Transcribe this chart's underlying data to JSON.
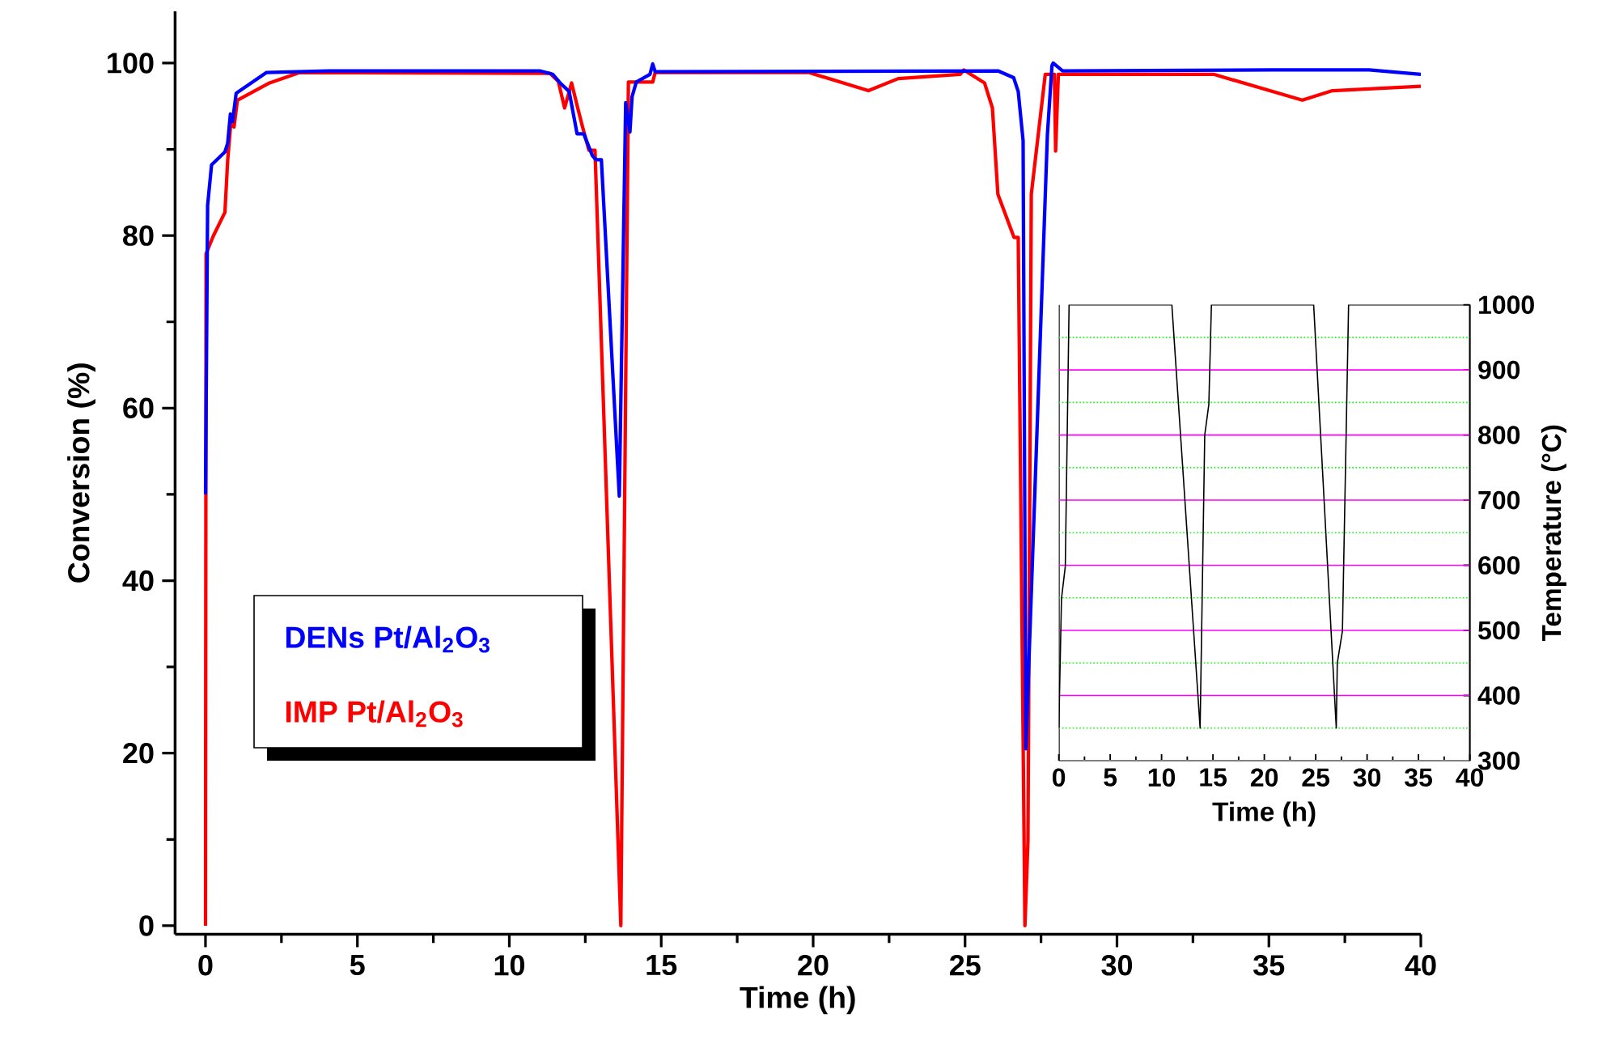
{
  "chart_data": [
    {
      "type": "line",
      "xlabel": "Time (h)",
      "ylabel": "Conversion (%)",
      "xlim": [
        -1,
        40
      ],
      "ylim": [
        -1,
        106
      ],
      "xticks": [
        0,
        5,
        10,
        15,
        20,
        25,
        30,
        35,
        40
      ],
      "yticks": [
        0,
        20,
        40,
        60,
        80,
        100
      ],
      "legend": "left",
      "series": [
        {
          "name": "DENs Pt/Al$_{2}$O$_{3}$",
          "color": "#0000ff",
          "x": [
            0,
            0.07,
            0.2,
            0.64,
            0.73,
            0.82,
            0.89,
            1.01,
            2.0,
            4.06,
            11.0,
            11.43,
            11.7,
            11.97,
            12.23,
            12.45,
            12.73,
            12.85,
            13.03,
            13.62,
            13.83,
            13.97,
            14.04,
            14.18,
            14.63,
            14.72,
            14.8,
            26.08,
            26.6,
            26.75,
            26.91,
            27.0,
            27.71,
            27.86,
            27.9,
            28.21,
            35.1,
            38.3,
            40
          ],
          "values": [
            50,
            83.5,
            88.2,
            89.7,
            90.7,
            94.1,
            93.2,
            96.5,
            98.9,
            99.1,
            99.1,
            98.7,
            97.6,
            96.7,
            91.8,
            91.8,
            89.3,
            88.8,
            88.8,
            49.8,
            95.4,
            92.0,
            96.1,
            97.8,
            98.7,
            99.9,
            99.0,
            99.1,
            98.3,
            96.7,
            91.0,
            20.5,
            91.7,
            99.7,
            100,
            99.1,
            99.2,
            99.2,
            98.7
          ]
        },
        {
          "name": "IMP Pt/Al$_{2}$O$_{3}$",
          "color": "#ff0000",
          "x": [
            0,
            0.02,
            0.25,
            0.64,
            0.73,
            0.83,
            0.94,
            1.05,
            2.11,
            3.09,
            11.34,
            11.61,
            11.82,
            12.05,
            12.23,
            12.41,
            12.62,
            12.82,
            13.67,
            13.92,
            14.72,
            14.8,
            19.87,
            21.82,
            22.8,
            24.84,
            24.96,
            25.64,
            25.9,
            26.08,
            26.61,
            26.75,
            26.97,
            27.07,
            27.18,
            27.64,
            27.94,
            27.98,
            28.07,
            33.18,
            36.1,
            37.09,
            40
          ],
          "values": [
            0,
            77.9,
            79.9,
            82.7,
            88.7,
            92.9,
            92.6,
            95.7,
            97.7,
            98.9,
            98.8,
            97.9,
            94.8,
            97.7,
            95.1,
            92.6,
            89.9,
            89.9,
            0,
            97.8,
            97.8,
            98.9,
            98.9,
            96.8,
            98.2,
            98.7,
            99.2,
            97.7,
            94.8,
            84.8,
            79.8,
            79.8,
            0,
            9.8,
            84.8,
            98.7,
            98.7,
            89.8,
            98.7,
            98.7,
            95.7,
            96.8,
            97.3
          ]
        }
      ]
    },
    {
      "type": "line",
      "xlabel": "Time (h)",
      "ylabel": "Temperature (°C)",
      "xlim": [
        0,
        40
      ],
      "ylim": [
        300,
        1000
      ],
      "xticks": [
        0,
        5,
        10,
        15,
        20,
        25,
        30,
        35,
        40
      ],
      "yticks": [
        300,
        400,
        500,
        600,
        700,
        800,
        900,
        1000
      ],
      "series": [
        {
          "color": "#000000",
          "x": [
            0,
            0.26,
            0.63,
            1.0,
            11.0,
            13.75,
            14.2,
            14.6,
            14.85,
            24.8,
            27.0,
            27.1,
            27.6,
            28.2,
            40
          ],
          "values": [
            350,
            549,
            598,
            1000,
            1000,
            350,
            800,
            847,
            1000,
            1000,
            350,
            450,
            499,
            1000,
            1000
          ]
        }
      ],
      "ref_lines": [
        {
          "axis": "y",
          "value": 350,
          "color": "#00ff00",
          "line_style": "dotted"
        },
        {
          "axis": "y",
          "value": 400,
          "color": "#ff00ff",
          "line_style": "solid"
        },
        {
          "axis": "y",
          "value": 450,
          "color": "#00ff00",
          "line_style": "dotted"
        },
        {
          "axis": "y",
          "value": 500,
          "color": "#ff00ff",
          "line_style": "solid"
        },
        {
          "axis": "y",
          "value": 550,
          "color": "#00ff00",
          "line_style": "dotted"
        },
        {
          "axis": "y",
          "value": 600,
          "color": "#ff00ff",
          "line_style": "solid"
        },
        {
          "axis": "y",
          "value": 650,
          "color": "#00ff00",
          "line_style": "dotted"
        },
        {
          "axis": "y",
          "value": 700,
          "color": "#ff00ff",
          "line_style": "solid"
        },
        {
          "axis": "y",
          "value": 750,
          "color": "#00ff00",
          "line_style": "dotted"
        },
        {
          "axis": "y",
          "value": 800,
          "color": "#ff00ff",
          "line_style": "solid"
        },
        {
          "axis": "y",
          "value": 850,
          "color": "#00ff00",
          "line_style": "dotted"
        },
        {
          "axis": "y",
          "value": 900,
          "color": "#ff00ff",
          "line_style": "solid"
        },
        {
          "axis": "y",
          "value": 950,
          "color": "#00ff00",
          "line_style": "dotted"
        }
      ]
    }
  ]
}
